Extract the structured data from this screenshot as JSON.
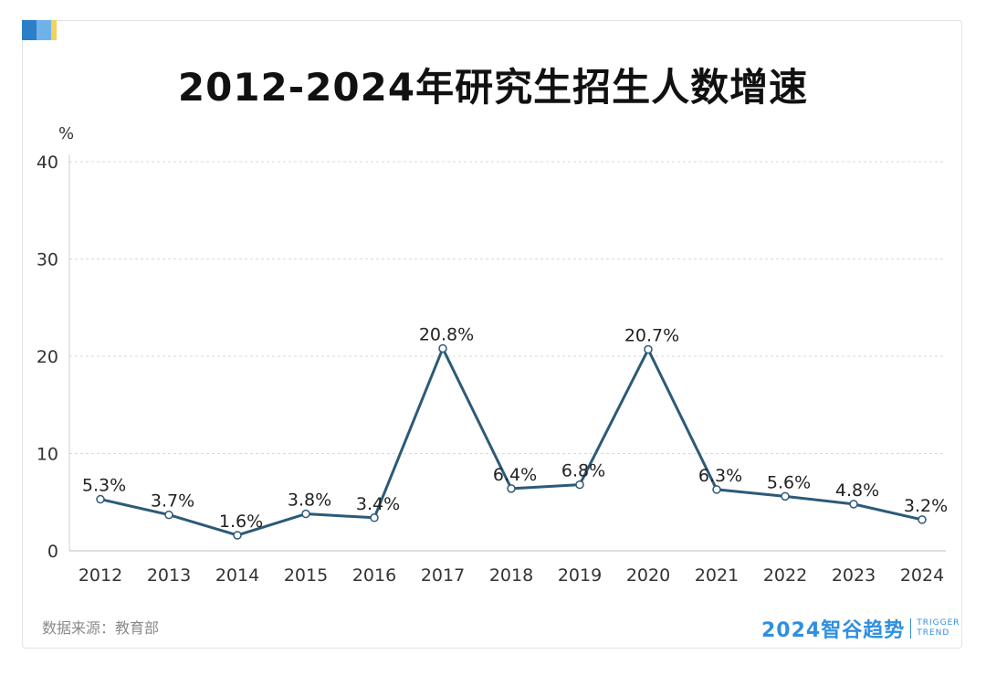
{
  "title": "2012-2024年研究生招生人数增速",
  "source": "数据来源：教育部",
  "brand": {
    "main": "2024智谷趋势",
    "en_line1": "TRIGGER",
    "en_line2": "TREND"
  },
  "colors": {
    "line": "#2c5a78",
    "grid": "#d9d9d9",
    "accent_blue": "#2f8fe0",
    "corner_blue_dark": "#2b7ec8",
    "corner_blue_light": "#6fb2ea",
    "corner_yellow": "#f2d25c"
  },
  "chart_data": {
    "type": "line",
    "y_unit": "%",
    "ylim": [
      0,
      40
    ],
    "yticks": [
      "0",
      "10",
      "20",
      "30",
      "40"
    ],
    "grid": true,
    "categories": [
      "2012",
      "2013",
      "2014",
      "2015",
      "2016",
      "2017",
      "2018",
      "2019",
      "2020",
      "2021",
      "2022",
      "2023",
      "2024"
    ],
    "values": [
      5.3,
      3.7,
      1.6,
      3.8,
      3.4,
      20.8,
      6.4,
      6.8,
      20.7,
      6.3,
      5.6,
      4.8,
      3.2
    ],
    "labels": [
      "5.3%",
      "3.7%",
      "1.6%",
      "3.8%",
      "3.4%",
      "20.8%",
      "6.4%",
      "6.8%",
      "20.7%",
      "6.3%",
      "5.6%",
      "4.8%",
      "3.2%"
    ]
  }
}
